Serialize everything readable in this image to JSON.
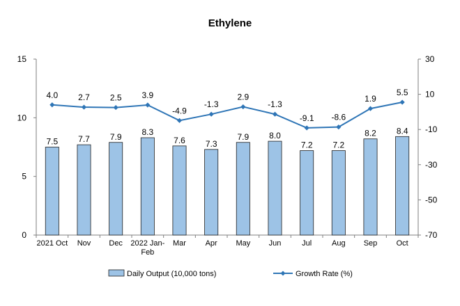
{
  "chart_data": {
    "type": "bar",
    "title": "Ethylene",
    "categories": [
      "2021 Oct",
      "Nov",
      "Dec",
      "2022 Jan-Feb",
      "Mar",
      "Apr",
      "May",
      "Jun",
      "Jul",
      "Aug",
      "Sep",
      "Oct"
    ],
    "series": [
      {
        "name": "Daily Output (10,000 tons)",
        "type": "bar",
        "axis": "left",
        "color": "#9DC3E6",
        "values": [
          7.5,
          7.7,
          7.9,
          8.3,
          7.6,
          7.3,
          7.9,
          8.0,
          7.2,
          7.2,
          8.2,
          8.4
        ],
        "labels": [
          "7.5",
          "7.7",
          "7.9",
          "8.3",
          "7.6",
          "7.3",
          "7.9",
          "8.0",
          "7.2",
          "7.2",
          "8.2",
          "8.4"
        ]
      },
      {
        "name": "Growth Rate (%)",
        "type": "line",
        "axis": "right",
        "color": "#2E75B6",
        "values": [
          4.0,
          2.7,
          2.5,
          3.9,
          -4.9,
          -1.3,
          2.9,
          -1.3,
          -9.1,
          -8.6,
          1.9,
          5.5
        ],
        "labels": [
          "4.0",
          "2.7",
          "2.5",
          "3.9",
          "-4.9",
          "-1.3",
          "2.9",
          "-1.3",
          "-9.1",
          "-8.6",
          "1.9",
          "5.5"
        ]
      }
    ],
    "y_left": {
      "min": 0,
      "max": 15,
      "ticks": [
        0,
        5,
        10,
        15
      ]
    },
    "y_right": {
      "min": -70,
      "max": 30,
      "ticks": [
        -70,
        -50,
        -30,
        -10,
        10,
        30
      ]
    },
    "legend_position": "bottom",
    "grid": false
  }
}
